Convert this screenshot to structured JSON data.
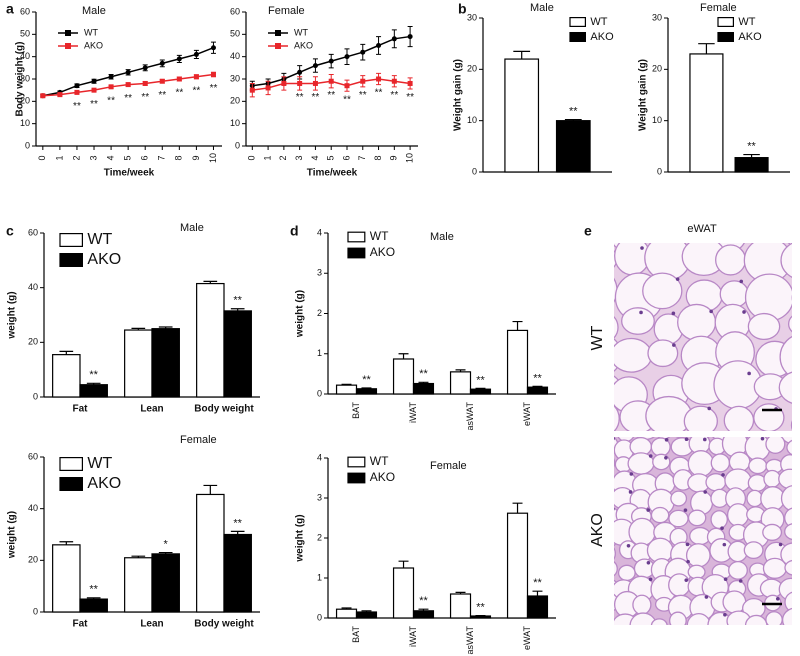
{
  "panels": {
    "labels": [
      "a",
      "b",
      "c",
      "d",
      "e"
    ]
  },
  "images": {
    "title": "eWAT",
    "rows": [
      "WT",
      "AKO"
    ]
  },
  "chart_data": [
    {
      "type": "line",
      "title": "Male",
      "xlabel": "Time/week",
      "ylabel": "Body weight (g)",
      "x": [
        0,
        1,
        2,
        3,
        4,
        5,
        6,
        7,
        8,
        9,
        10
      ],
      "xlim": [
        -0.4,
        10.5
      ],
      "xticks": [
        0,
        1,
        2,
        3,
        4,
        5,
        6,
        7,
        8,
        9,
        10
      ],
      "ylim": [
        0,
        60
      ],
      "yticks": [
        0,
        10,
        20,
        30,
        40,
        50,
        60
      ],
      "legend": "upper left",
      "series": [
        {
          "name": "WT",
          "color": "#000000",
          "values": [
            22.5,
            24,
            27,
            29,
            31,
            33,
            35,
            37,
            39,
            41,
            44
          ],
          "errors": [
            0.5,
            0.6,
            0.8,
            0.9,
            1,
            1.2,
            1.3,
            1.5,
            1.6,
            1.8,
            2.5
          ]
        },
        {
          "name": "AKO",
          "color": "#e8262b",
          "values": [
            22.5,
            23,
            24,
            25,
            26.5,
            27.5,
            28,
            29,
            30,
            31,
            32
          ],
          "errors": [
            0.5,
            0.5,
            0.6,
            0.6,
            0.7,
            0.7,
            0.8,
            0.8,
            0.9,
            0.9,
            1
          ]
        }
      ],
      "significance": [
        null,
        null,
        "**",
        "**",
        "**",
        "**",
        "**",
        "**",
        "**",
        "**",
        "**"
      ]
    },
    {
      "type": "line",
      "title": "Female",
      "xlabel": "Time/week",
      "x": [
        0,
        1,
        2,
        3,
        4,
        5,
        6,
        7,
        8,
        9,
        10
      ],
      "xlim": [
        -0.4,
        10.5
      ],
      "xticks": [
        0,
        1,
        2,
        3,
        4,
        5,
        6,
        7,
        8,
        9,
        10
      ],
      "ylim": [
        0,
        60
      ],
      "yticks": [
        0,
        10,
        20,
        30,
        40,
        50,
        60
      ],
      "legend": "upper left",
      "series": [
        {
          "name": "WT",
          "color": "#000000",
          "values": [
            27,
            28,
            30,
            33,
            36,
            38,
            40,
            42,
            45,
            48,
            49
          ],
          "errors": [
            2,
            2,
            2.5,
            3,
            3,
            3,
            3.5,
            3.5,
            4,
            4,
            4.5
          ]
        },
        {
          "name": "AKO",
          "color": "#e8262b",
          "values": [
            25,
            26,
            28,
            28,
            28,
            29,
            27,
            29,
            30,
            29,
            28
          ],
          "errors": [
            3,
            3,
            3,
            3,
            3,
            3,
            2.5,
            2.5,
            2.5,
            2.5,
            2.5
          ]
        }
      ],
      "significance": [
        null,
        null,
        null,
        "**",
        "**",
        "**",
        "**",
        "**",
        "**",
        "**",
        "**"
      ]
    },
    {
      "type": "bar",
      "title": "Male",
      "ylabel": "Weight  gain (g)",
      "categories": [
        null
      ],
      "ylim": [
        0,
        30
      ],
      "yticks": [
        0,
        10,
        20,
        30
      ],
      "legend": "upper right",
      "series": [
        {
          "name": "WT",
          "color": "#ffffff",
          "values": [
            22
          ],
          "errors": [
            1.5
          ]
        },
        {
          "name": "AKO",
          "color": "#000000",
          "values": [
            10
          ],
          "errors": [
            0.2
          ]
        }
      ],
      "significance": [
        "**"
      ]
    },
    {
      "type": "bar",
      "title": "Female",
      "ylabel": "Weight  gain (g)",
      "categories": [
        null
      ],
      "ylim": [
        0,
        30
      ],
      "yticks": [
        0,
        10,
        20,
        30
      ],
      "legend": "upper right",
      "series": [
        {
          "name": "WT",
          "color": "#ffffff",
          "values": [
            23
          ],
          "errors": [
            2
          ]
        },
        {
          "name": "AKO",
          "color": "#000000",
          "values": [
            2.8
          ],
          "errors": [
            0.6
          ]
        }
      ],
      "significance": [
        "**"
      ]
    },
    {
      "type": "bar",
      "title": "Male",
      "ylabel": "weight (g)",
      "categories": [
        "Fat",
        "Lean",
        "Body weight"
      ],
      "ylim": [
        0,
        60
      ],
      "yticks": [
        0,
        20,
        40,
        60
      ],
      "legend": "upper left",
      "series": [
        {
          "name": "WT",
          "color": "#ffffff",
          "values": [
            15.5,
            24.5,
            41.5
          ],
          "errors": [
            1.2,
            0.6,
            0.8
          ]
        },
        {
          "name": "AKO",
          "color": "#000000",
          "values": [
            4.5,
            25,
            31.5
          ],
          "errors": [
            0.5,
            0.6,
            0.8
          ]
        }
      ],
      "significance": [
        "**",
        null,
        "**"
      ]
    },
    {
      "type": "bar",
      "title": "Female",
      "ylabel": "weight (g)",
      "categories": [
        "Fat",
        "Lean",
        "Body weight"
      ],
      "ylim": [
        0,
        60
      ],
      "yticks": [
        0,
        20,
        40,
        60
      ],
      "legend": "upper left",
      "series": [
        {
          "name": "WT",
          "color": "#ffffff",
          "values": [
            26,
            21,
            45.5
          ],
          "errors": [
            1.2,
            0.6,
            3.5
          ]
        },
        {
          "name": "AKO",
          "color": "#000000",
          "values": [
            5,
            22.5,
            30
          ],
          "errors": [
            0.5,
            0.5,
            1.2
          ]
        }
      ],
      "significance": [
        "**",
        "*",
        "**"
      ]
    },
    {
      "type": "bar",
      "title": "Male",
      "ylabel": "weight (g)",
      "categories": [
        "BAT",
        "iWAT",
        "asWAT",
        "eWAT"
      ],
      "ylim": [
        0,
        4
      ],
      "yticks": [
        0,
        1,
        2,
        3,
        4
      ],
      "legend": "upper left",
      "series": [
        {
          "name": "WT",
          "color": "#ffffff",
          "values": [
            0.22,
            0.87,
            0.55,
            1.58
          ],
          "errors": [
            0.02,
            0.13,
            0.05,
            0.22
          ]
        },
        {
          "name": "AKO",
          "color": "#000000",
          "values": [
            0.13,
            0.26,
            0.12,
            0.17
          ],
          "errors": [
            0.02,
            0.03,
            0.02,
            0.02
          ]
        }
      ],
      "significance": [
        "**",
        "**",
        "**",
        "**"
      ]
    },
    {
      "type": "bar",
      "title": "Female",
      "ylabel": "weight (g)",
      "categories": [
        "BAT",
        "iWAT",
        "asWAT",
        "eWAT"
      ],
      "ylim": [
        0,
        4
      ],
      "yticks": [
        0,
        1,
        2,
        3,
        4
      ],
      "legend": "upper left",
      "series": [
        {
          "name": "WT",
          "color": "#ffffff",
          "values": [
            0.22,
            1.25,
            0.6,
            2.62
          ],
          "errors": [
            0.03,
            0.17,
            0.04,
            0.25
          ]
        },
        {
          "name": "AKO",
          "color": "#000000",
          "values": [
            0.15,
            0.18,
            0.05,
            0.55
          ],
          "errors": [
            0.03,
            0.04,
            0.01,
            0.12
          ]
        }
      ],
      "significance": [
        null,
        "**",
        "**",
        "**"
      ]
    }
  ]
}
